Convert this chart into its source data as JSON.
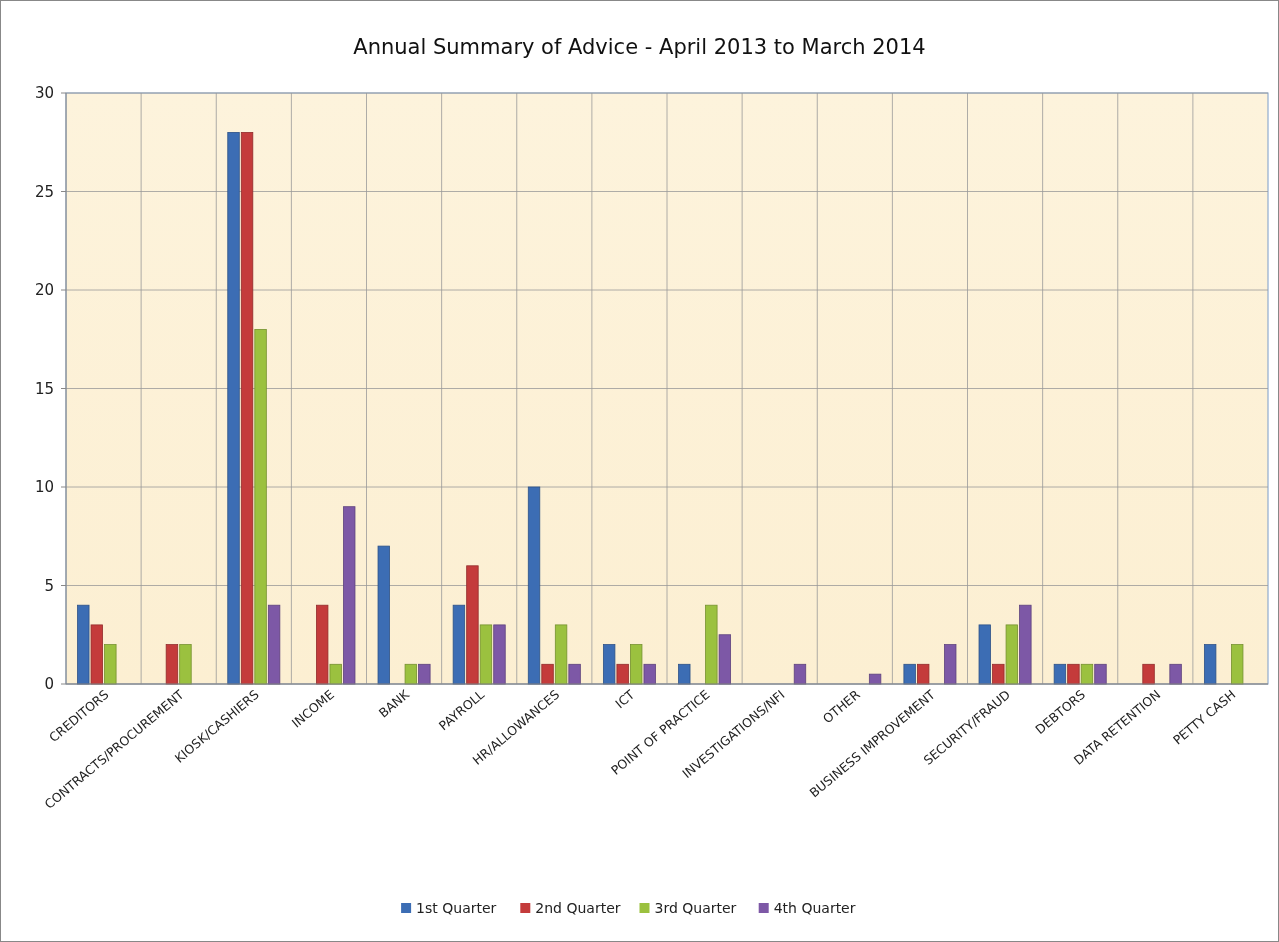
{
  "chart_data": {
    "type": "bar",
    "title": "Annual Summary of Advice - April 2013 to March 2014",
    "categories": [
      "CREDITORS",
      "CONTRACTS/PROCUREMENT",
      "KIOSK/CASHIERS",
      "INCOME",
      "BANK",
      "PAYROLL",
      "HR/ALLOWANCES",
      "ICT",
      "POINT OF PRACTICE",
      "INVESTIGATIONS/NFI",
      "OTHER",
      "BUSINESS IMPROVEMENT",
      "SECURITY/FRAUD",
      "DEBTORS",
      "DATA RETENTION",
      "PETTY CASH"
    ],
    "series": [
      {
        "name": "1st Quarter",
        "color": "#3c6db4",
        "values": [
          4,
          null,
          28,
          null,
          7,
          4,
          10,
          2,
          1,
          null,
          null,
          1,
          3,
          1,
          null,
          2
        ]
      },
      {
        "name": "2nd Quarter",
        "color": "#c43b3b",
        "values": [
          3,
          2,
          28,
          4,
          null,
          6,
          1,
          1,
          null,
          null,
          null,
          1,
          1,
          1,
          1,
          null
        ]
      },
      {
        "name": "3rd Quarter",
        "color": "#9bc13f",
        "values": [
          2,
          2,
          18,
          1,
          1,
          3,
          3,
          2,
          4,
          null,
          null,
          null,
          3,
          1,
          null,
          2
        ]
      },
      {
        "name": "4th Quarter",
        "color": "#7d58a6",
        "values": [
          null,
          null,
          4,
          9,
          1,
          3,
          1,
          1,
          2.5,
          1,
          0.5,
          2,
          4,
          1,
          1,
          null
        ]
      }
    ],
    "ylim": [
      0,
      30
    ],
    "yticks": [
      0,
      5,
      10,
      15,
      20,
      25,
      30
    ],
    "grid": true,
    "legend": "bottom"
  }
}
